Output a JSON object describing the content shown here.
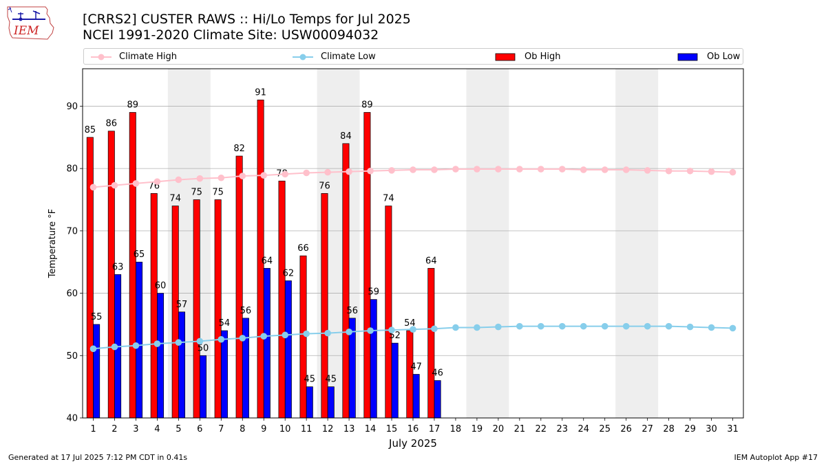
{
  "title_line1": "[CRRS2] CUSTER RAWS :: Hi/Lo Temps for Jul 2025",
  "title_line2": "NCEI 1991-2020 Climate Site: USW00094032",
  "logo_text": "IEM",
  "footer_left": "Generated at 17 Jul 2025 7:12 PM CDT in 0.41s",
  "footer_right": "IEM Autoplot App #17",
  "legend": {
    "climate_high": "Climate High",
    "climate_low": "Climate Low",
    "ob_high": "Ob High",
    "ob_low": "Ob Low"
  },
  "colors": {
    "ob_high": "#ff0000",
    "ob_low": "#0000ff",
    "climate_high": "#ffc0cb",
    "climate_low": "#87ceeb",
    "weekend_shade": "#eeeeee",
    "grid": "#b0b0b0"
  },
  "chart_data": {
    "type": "bar",
    "xlabel": "July 2025",
    "ylabel": "Temperature °F",
    "ylim": [
      40,
      96
    ],
    "yticks": [
      40,
      50,
      60,
      70,
      80,
      90
    ],
    "x": [
      1,
      2,
      3,
      4,
      5,
      6,
      7,
      8,
      9,
      10,
      11,
      12,
      13,
      14,
      15,
      16,
      17,
      18,
      19,
      20,
      21,
      22,
      23,
      24,
      25,
      26,
      27,
      28,
      29,
      30,
      31
    ],
    "grid": "horizontal",
    "weekend_shading": [
      [
        5,
        6
      ],
      [
        12,
        13
      ],
      [
        19,
        20
      ],
      [
        26,
        27
      ]
    ],
    "series": [
      {
        "name": "Ob High",
        "kind": "bar",
        "color": "#ff0000",
        "values": [
          85,
          86,
          89,
          76,
          74,
          75,
          75,
          82,
          91,
          78,
          66,
          76,
          84,
          89,
          74,
          54,
          64,
          null,
          null,
          null,
          null,
          null,
          null,
          null,
          null,
          null,
          null,
          null,
          null,
          null,
          null
        ]
      },
      {
        "name": "Ob Low",
        "kind": "bar",
        "color": "#0000ff",
        "values": [
          55,
          63,
          65,
          60,
          57,
          50,
          54,
          56,
          64,
          62,
          45,
          45,
          56,
          59,
          52,
          47,
          46,
          null,
          null,
          null,
          null,
          null,
          null,
          null,
          null,
          null,
          null,
          null,
          null,
          null,
          null
        ]
      },
      {
        "name": "Climate High",
        "kind": "line",
        "color": "#ffc0cb",
        "values": [
          77.0,
          77.3,
          77.6,
          77.9,
          78.2,
          78.4,
          78.5,
          78.8,
          78.9,
          79.1,
          79.3,
          79.4,
          79.5,
          79.6,
          79.7,
          79.8,
          79.8,
          79.9,
          79.9,
          79.9,
          79.9,
          79.9,
          79.9,
          79.8,
          79.8,
          79.8,
          79.7,
          79.6,
          79.6,
          79.5,
          79.4
        ]
      },
      {
        "name": "Climate Low",
        "kind": "line",
        "color": "#87ceeb",
        "values": [
          51.1,
          51.4,
          51.6,
          51.9,
          52.1,
          52.3,
          52.6,
          52.8,
          53.1,
          53.3,
          53.5,
          53.6,
          53.8,
          54.0,
          54.1,
          54.2,
          54.3,
          54.5,
          54.5,
          54.6,
          54.7,
          54.7,
          54.7,
          54.7,
          54.7,
          54.7,
          54.7,
          54.7,
          54.6,
          54.5,
          54.4
        ]
      }
    ]
  }
}
